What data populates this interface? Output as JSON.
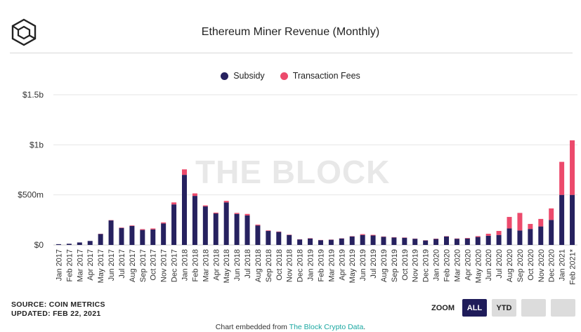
{
  "header": {
    "title": "Ethereum Miner Revenue (Monthly)"
  },
  "watermark": "THE BLOCK",
  "footer": {
    "source": "SOURCE: COIN METRICS",
    "updated": "UPDATED: FEB 22, 2021",
    "zoom_label": "ZOOM",
    "zoom_all": "ALL",
    "zoom_ytd": "YTD",
    "embed_prefix": "Chart embedded from",
    "embed_link": "The Block Crypto Data",
    "embed_suffix": "."
  },
  "colors": {
    "subsidy": "#26215f",
    "fees": "#ec4a6c",
    "grid": "#e6e6e6",
    "axis_text": "#333333",
    "active_button": "#1f1c5a"
  },
  "chart_data": {
    "type": "bar",
    "stacked": true,
    "title": "Ethereum Miner Revenue (Monthly)",
    "xlabel": "",
    "ylabel": "",
    "unit": "USD millions",
    "ylim": [
      0,
      1500
    ],
    "yticks": [
      0,
      500,
      1000,
      1500
    ],
    "ytick_labels": [
      "$0",
      "$500m",
      "$1b",
      "$1.5b"
    ],
    "grid": true,
    "legend": "top-center",
    "categories": [
      "Jan 2017",
      "Feb 2017",
      "Mar 2017",
      "Apr 2017",
      "May 2017",
      "Jun 2017",
      "Jul 2017",
      "Aug 2017",
      "Sep 2017",
      "Oct 2017",
      "Nov 2017",
      "Dec 2017",
      "Jan 2018",
      "Feb 2018",
      "Mar 2018",
      "Apr 2018",
      "May 2018",
      "Jun 2018",
      "Jul 2018",
      "Aug 2018",
      "Sep 2018",
      "Oct 2018",
      "Nov 2018",
      "Dec 2018",
      "Jan 2019",
      "Feb 2019",
      "Mar 2019",
      "Apr 2019",
      "May 2019",
      "Jun 2019",
      "Jul 2019",
      "Aug 2019",
      "Sep 2019",
      "Oct 2019",
      "Nov 2019",
      "Dec 2019",
      "Jan 2020",
      "Feb 2020",
      "Mar 2020",
      "Apr 2020",
      "May 2020",
      "Jun 2020",
      "Jul 2020",
      "Aug 2020",
      "Sep 2020",
      "Oct 2020",
      "Nov 2020",
      "Dec 2020",
      "Jan 2021",
      "Feb 2021*"
    ],
    "series": [
      {
        "name": "Subsidy",
        "values": [
          8,
          12,
          25,
          40,
          110,
          245,
          170,
          190,
          150,
          155,
          215,
          405,
          700,
          490,
          385,
          315,
          425,
          310,
          295,
          195,
          140,
          130,
          100,
          55,
          65,
          48,
          52,
          65,
          85,
          100,
          95,
          82,
          75,
          72,
          62,
          45,
          60,
          85,
          62,
          65,
          80,
          92,
          100,
          165,
          145,
          160,
          185,
          250,
          500,
          500
        ]
      },
      {
        "name": "Transaction Fees",
        "values": [
          0,
          0,
          0,
          0,
          2,
          3,
          4,
          5,
          8,
          10,
          10,
          20,
          55,
          25,
          10,
          8,
          15,
          10,
          15,
          8,
          5,
          4,
          3,
          2,
          3,
          2,
          2,
          2,
          3,
          8,
          6,
          3,
          3,
          3,
          2,
          2,
          3,
          3,
          3,
          5,
          8,
          20,
          40,
          115,
          175,
          50,
          75,
          115,
          330,
          545
        ]
      }
    ]
  }
}
